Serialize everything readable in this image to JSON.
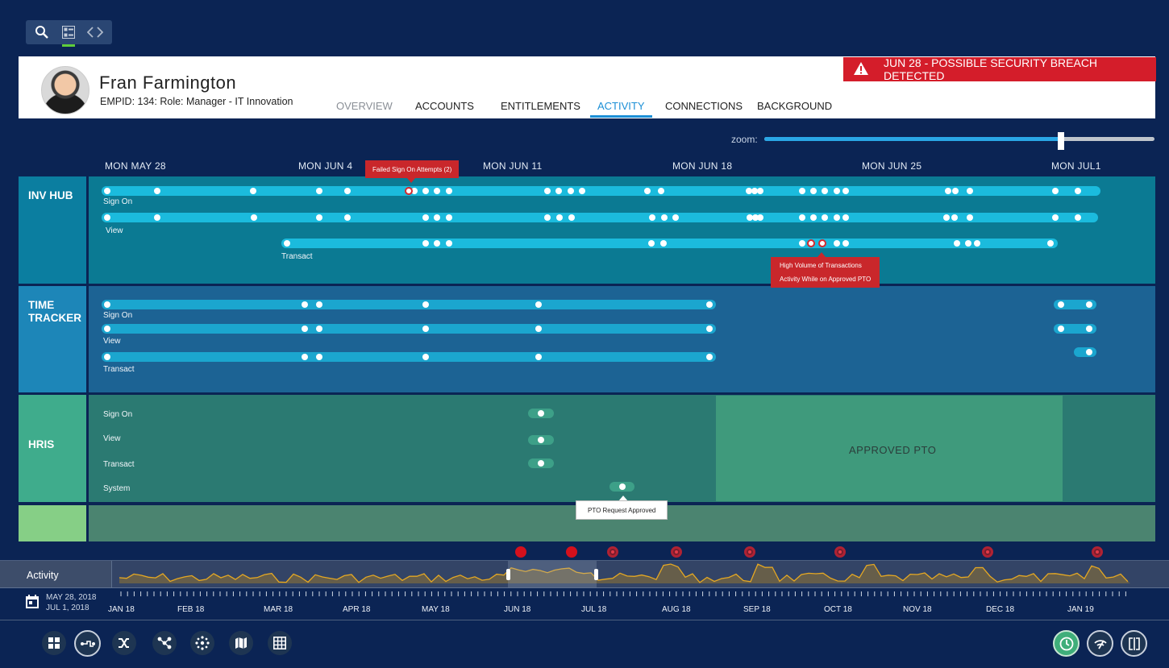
{
  "profile": {
    "name": "Fran Farmington",
    "details": "EMPID: 134: Role: Manager - IT Innovation"
  },
  "tabs": [
    "OVERVIEW",
    "ACCOUNTS",
    "ENTITLEMENTS",
    "ACTIVITY",
    "CONNECTIONS",
    "BACKGROUND"
  ],
  "active_tab": "ACTIVITY",
  "alert": {
    "text": "JUN 28 - POSSIBLE SECURITY BREACH DETECTED",
    "color": "#d41d2a"
  },
  "zoom": {
    "label": "zoom:",
    "level": 0.76
  },
  "timeline_dates": [
    "MON MAY 28",
    "MON JUN 4",
    "MON JUN 11",
    "MON JUN 18",
    "MON JUN 25",
    "MON JUL1"
  ],
  "lanes": {
    "inv_hub": {
      "label": "INV HUB",
      "rows": [
        "Sign On",
        "View",
        "Transact"
      ]
    },
    "time_tracker": {
      "label": "TIME TRACKER",
      "rows": [
        "Sign On",
        "View",
        "Transact"
      ]
    },
    "hris": {
      "label": "HRIS",
      "rows": [
        "Sign On",
        "View",
        "Transact",
        "System"
      ]
    }
  },
  "tooltips": {
    "failed_signon": "Failed Sign On Attempts (2)",
    "high_volume_1": "High Volume of Transactions",
    "high_volume_2": "Activity While on Approved PTO",
    "pto_request": "PTO Request Approved"
  },
  "approved_pto": "APPROVED PTO",
  "activity": {
    "label": "Activity",
    "range_start": "MAY 28, 2018",
    "range_end": "JUL 1, 2018",
    "months": [
      "JAN 18",
      "FEB 18",
      "MAR 18",
      "APR 18",
      "MAY 18",
      "JUN 18",
      "JUL 18",
      "AUG 18",
      "SEP 18",
      "OCT 18",
      "NOV 18",
      "DEC 18",
      "JAN 19"
    ]
  },
  "colors": {
    "inv_hub": "#0b7a93",
    "time_tracker": "#1c6394",
    "hris": "#2b7a72",
    "alert_red": "#d41d2a",
    "accent_blue": "#1b8fd6",
    "sparkline": "#e5a823"
  },
  "bottom_nav_icons": [
    "grid-icon",
    "route-icon",
    "shuffle-icon",
    "network-icon",
    "dots-cluster-icon",
    "map-icon",
    "table-icon"
  ],
  "bottom_right_icons": [
    "clock-icon",
    "signal-icon",
    "split-view-icon"
  ]
}
